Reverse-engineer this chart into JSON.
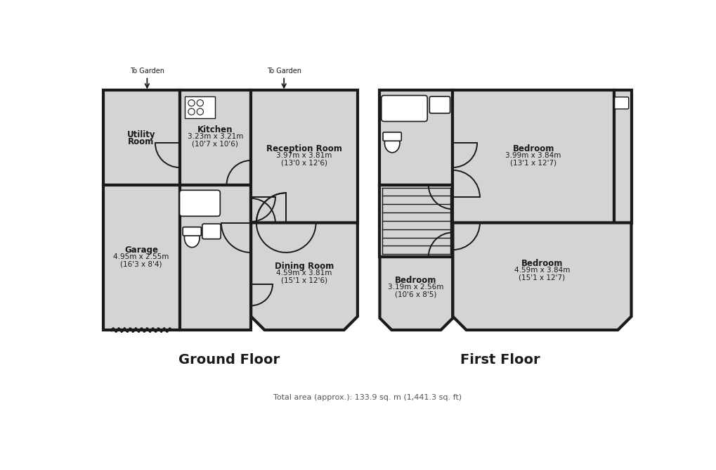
{
  "bg_color": "#ffffff",
  "wall_color": "#1a1a1a",
  "room_fill": "#d4d4d4",
  "lw": 3.0,
  "ground_floor_label": "Ground Floor",
  "first_floor_label": "First Floor",
  "footer_text": "Total area (approx.): 133.9 sq. m (1,441.3 sq. ft)",
  "rooms": {
    "garage": {
      "label": "Garage",
      "sub1": "4.95m x 2.55m",
      "sub2": "(16'3 x 8'4)"
    },
    "utility": {
      "label1": "Utility",
      "label2": "Room"
    },
    "kitchen": {
      "label": "Kitchen",
      "sub1": "3.23m x 3.21m",
      "sub2": "(10'7 x 10'6)"
    },
    "reception": {
      "label": "Reception Room",
      "sub1": "3.97m x 3.81m",
      "sub2": "(13'0 x 12'6)"
    },
    "dining": {
      "label": "Dining Room",
      "sub1": "4.59m x 3.81m",
      "sub2": "(15'1 x 12'6)"
    },
    "bed1": {
      "label": "Bedroom",
      "sub1": "3.99m x 3.84m",
      "sub2": "(13'1 x 12'7)"
    },
    "bed2": {
      "label": "Bedroom",
      "sub1": "3.19m x 2.56m",
      "sub2": "(10'6 x 8'5)"
    },
    "bed3": {
      "label": "Bedroom",
      "sub1": "4.59m x 3.84m",
      "sub2": "(15'1 x 12'7)"
    }
  }
}
